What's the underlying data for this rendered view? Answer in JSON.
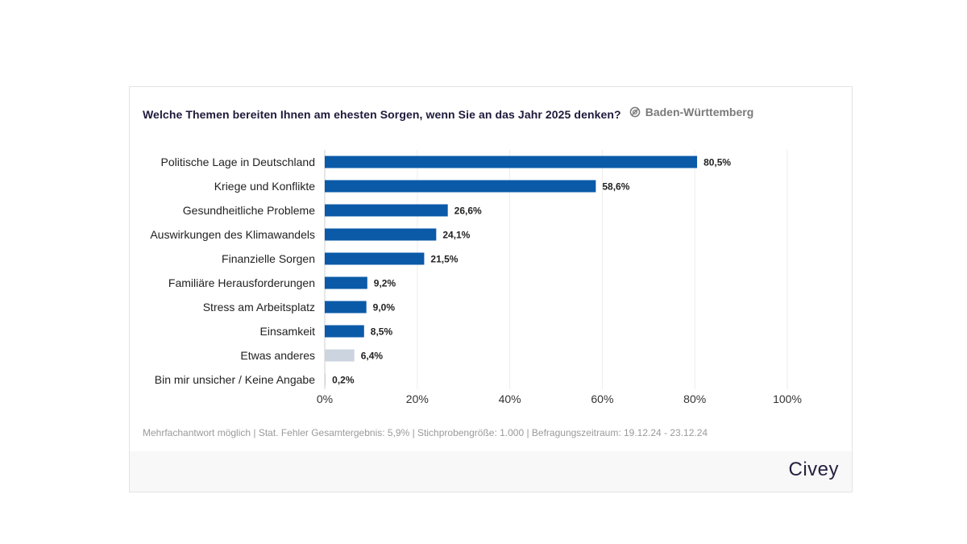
{
  "header": {
    "question": "Welche Themen bereiten Ihnen am ehesten Sorgen, wenn Sie an das Jahr 2025 denken?",
    "region": "Baden-Württemberg",
    "region_icon": "globe-no-icon"
  },
  "chart_data": {
    "type": "bar",
    "orientation": "horizontal",
    "title": "Welche Themen bereiten Ihnen am ehesten Sorgen, wenn Sie an das Jahr 2025 denken?",
    "categories": [
      "Politische Lage in Deutschland",
      "Kriege und Konflikte",
      "Gesundheitliche Probleme",
      "Auswirkungen des Klimawandels",
      "Finanzielle Sorgen",
      "Familiäre Herausforderungen",
      "Stress am Arbeitsplatz",
      "Einsamkeit",
      "Etwas anderes",
      "Bin mir unsicher / Keine Angabe"
    ],
    "values": [
      80.5,
      58.6,
      26.6,
      24.1,
      21.5,
      9.2,
      9.0,
      8.5,
      6.4,
      0.2
    ],
    "value_labels": [
      "80,5%",
      "58,6%",
      "26,6%",
      "24,1%",
      "21,5%",
      "9,2%",
      "9,0%",
      "8,5%",
      "6,4%",
      "0,2%"
    ],
    "bar_colors": [
      "#0a5aa8",
      "#0a5aa8",
      "#0a5aa8",
      "#0a5aa8",
      "#0a5aa8",
      "#0a5aa8",
      "#0a5aa8",
      "#0a5aa8",
      "#ccd4df",
      "#ccd4df"
    ],
    "xlim": [
      0,
      100
    ],
    "xticks": [
      0,
      20,
      40,
      60,
      80,
      100
    ],
    "xtick_labels": [
      "0%",
      "20%",
      "40%",
      "60%",
      "80%",
      "100%"
    ],
    "grid": true,
    "xlabel": "",
    "ylabel": ""
  },
  "footer": {
    "note": "Mehrfachantwort möglich | Stat. Fehler Gesamtergebnis: 5,9% | Stichprobengröße: 1.000 | Befragungszeitraum: 19.12.24 - 23.12.24",
    "brand": "Civey"
  }
}
